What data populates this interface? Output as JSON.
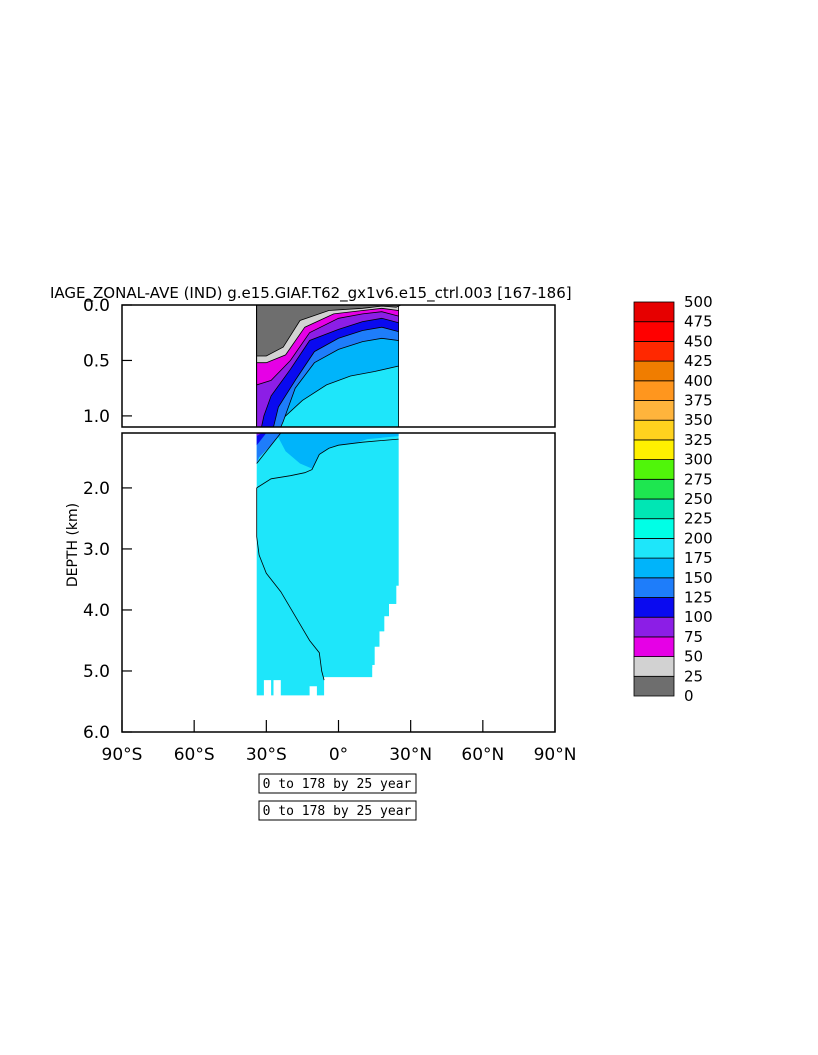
{
  "chart_data": {
    "type": "contour",
    "title": "IAGE_ZONAL-AVE (IND) g.e15.GIAF.T62_gx1v6.e15_ctrl.003 [167-186]",
    "ylabel": "DEPTH (km)",
    "xlabel": "",
    "x_ticks": [
      "90°S",
      "60°S",
      "30°S",
      "0°",
      "30°N",
      "60°N",
      "90°N"
    ],
    "x_tick_values": [
      -90,
      -60,
      -30,
      0,
      30,
      60,
      90
    ],
    "xlim": [
      -90,
      90
    ],
    "upper_panel": {
      "ylim": [
        0.0,
        1.1
      ],
      "y_ticks": [
        "0.0",
        "0.5",
        "1.0"
      ],
      "y_tick_values": [
        0.0,
        0.5,
        1.0
      ]
    },
    "lower_panel": {
      "ylim": [
        1.1,
        6.0
      ],
      "y_ticks": [
        "2.0",
        "3.0",
        "4.0",
        "5.0",
        "6.0"
      ],
      "y_tick_values": [
        2.0,
        3.0,
        4.0,
        5.0,
        6.0
      ]
    },
    "data_extent": {
      "lat_min": -34,
      "lat_max": 26,
      "max_depth_km": 5.4
    },
    "colorbar": {
      "levels": [
        "0",
        "25",
        "50",
        "75",
        "100",
        "125",
        "150",
        "175",
        "200",
        "225",
        "250",
        "275",
        "300",
        "325",
        "350",
        "375",
        "400",
        "425",
        "450",
        "475",
        "500"
      ],
      "colors": [
        "#6e6e6e",
        "#d2d2d2",
        "#e600e6",
        "#8c1ee6",
        "#0a0af0",
        "#1e7dfa",
        "#00b4fa",
        "#1ee6fa",
        "#00ffe6",
        "#00e6b4",
        "#1ee650",
        "#50f50a",
        "#fff000",
        "#ffd21e",
        "#ffb43c",
        "#ff961e",
        "#f07d00",
        "#ff2800",
        "#ff0000",
        "#e60000"
      ]
    },
    "boxes": [
      "0 to 178 by 25 year",
      "0 to 178 by 25 year"
    ]
  }
}
